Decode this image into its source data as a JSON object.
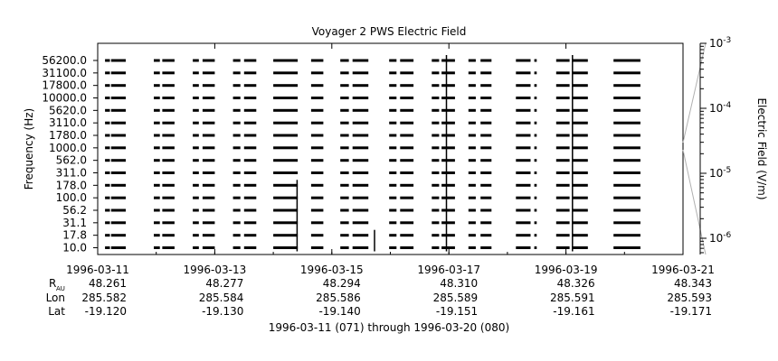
{
  "chart_data": {
    "type": "heatmap",
    "title": "Voyager 2 PWS Electric Field",
    "ylabel": "Frequency (Hz)",
    "y_channels": [
      "56200.0",
      "31100.0",
      "17800.0",
      "10000.0",
      "5620.0",
      "3110.0",
      "1780.0",
      "1000.0",
      "562.0",
      "311.0",
      "178.0",
      "100.0",
      "56.2",
      "31.1",
      "17.8",
      "10.0"
    ],
    "x_ticks": [
      "1996-03-11",
      "1996-03-13",
      "1996-03-15",
      "1996-03-17",
      "1996-03-19",
      "1996-03-21"
    ],
    "xlabel": "1996-03-11 (071) through 1996-03-20 (080)",
    "xlim": [
      "1996-03-11",
      "1996-03-21"
    ],
    "ephemeris": {
      "row_labels": {
        "r_main": "R",
        "r_sub": "AU",
        "lon": "Lon",
        "lat": "Lat"
      },
      "R_AU": [
        "48.261",
        "48.277",
        "48.294",
        "48.310",
        "48.326",
        "48.343"
      ],
      "Lon": [
        "285.582",
        "285.584",
        "285.586",
        "285.589",
        "285.591",
        "285.593"
      ],
      "Lat": [
        "-19.120",
        "-19.130",
        "-19.140",
        "-19.151",
        "-19.161",
        "-19.171"
      ]
    },
    "colorbar": {
      "label": "Electric Field (V/m)",
      "scale": "log",
      "ticks": [
        {
          "base": "10",
          "exp": "-3",
          "value": 0.001
        },
        {
          "base": "10",
          "exp": "-4",
          "value": 0.0001
        },
        {
          "base": "10",
          "exp": "-5",
          "value": 1e-05
        },
        {
          "base": "10",
          "exp": "-6",
          "value": 1e-06
        }
      ]
    },
    "data_segments": [
      [
        "1996-03-11T03:00",
        "1996-03-11T05:00"
      ],
      [
        "1996-03-11T05:30",
        "1996-03-11T11:30"
      ],
      [
        "1996-03-11T23:00",
        "1996-03-12T01:30"
      ],
      [
        "1996-03-12T02:30",
        "1996-03-12T07:30"
      ],
      [
        "1996-03-12T15:00",
        "1996-03-12T17:30"
      ],
      [
        "1996-03-12T19:00",
        "1996-03-13T00:00"
      ],
      [
        "1996-03-13T07:30",
        "1996-03-13T10:30"
      ],
      [
        "1996-03-13T12:00",
        "1996-03-13T17:00"
      ],
      [
        "1996-03-14T00:00",
        "1996-03-14T10:00"
      ],
      [
        "1996-03-14T15:30",
        "1996-03-14T20:30"
      ],
      [
        "1996-03-15T03:30",
        "1996-03-15T07:00"
      ],
      [
        "1996-03-15T08:30",
        "1996-03-15T15:00"
      ],
      [
        "1996-03-15T23:30",
        "1996-03-16T02:30"
      ],
      [
        "1996-03-16T04:00",
        "1996-03-16T09:30"
      ],
      [
        "1996-03-16T17:00",
        "1996-03-16T20:00"
      ],
      [
        "1996-03-16T21:00",
        "1996-03-17T02:30"
      ],
      [
        "1996-03-17T08:00",
        "1996-03-17T11:00"
      ],
      [
        "1996-03-17T13:00",
        "1996-03-17T17:30"
      ],
      [
        "1996-03-18T03:30",
        "1996-03-18T09:30"
      ],
      [
        "1996-03-18T11:00",
        "1996-03-18T12:00"
      ],
      [
        "1996-03-18T20:00",
        "1996-03-19T01:30"
      ],
      [
        "1996-03-19T02:30",
        "1996-03-19T09:00"
      ],
      [
        "1996-03-19T19:30",
        "1996-03-20T06:30"
      ]
    ],
    "bursts": [
      {
        "time": "1996-03-14T09:45",
        "channels": [
          "178.0",
          "100.0",
          "56.2",
          "31.1",
          "17.8",
          "10.0"
        ]
      },
      {
        "time": "1996-03-15T17:30",
        "channels": [
          "17.8",
          "10.0"
        ]
      },
      {
        "time": "1996-03-16T23:00",
        "channels": [
          "56200.0",
          "31100.0",
          "17800.0",
          "10000.0",
          "5620.0",
          "3110.0",
          "1780.0",
          "1000.0",
          "562.0",
          "311.0",
          "178.0",
          "100.0",
          "56.2",
          "31.1",
          "17.8",
          "10.0"
        ]
      },
      {
        "time": "1996-03-19T02:40",
        "channels": [
          "56200.0",
          "31100.0",
          "17800.0",
          "10000.0",
          "5620.0",
          "3110.0",
          "1780.0",
          "1000.0",
          "562.0",
          "311.0",
          "178.0",
          "100.0",
          "56.2",
          "31.1",
          "17.8",
          "10.0"
        ]
      }
    ]
  }
}
